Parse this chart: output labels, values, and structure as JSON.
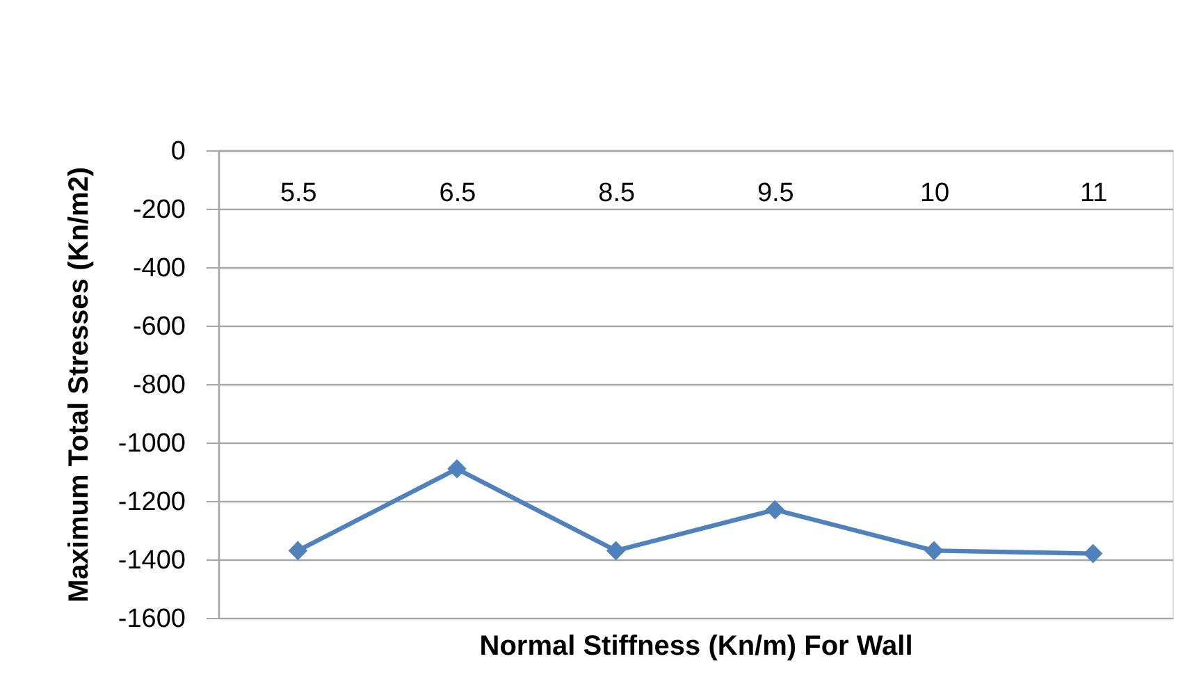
{
  "chart_data": {
    "type": "line",
    "xlabel": "Normal Stiffness (Kn/m) For Wall",
    "ylabel": "Maximum Total Stresses (Kn/m2)",
    "categories": [
      "5.5",
      "6.5",
      "8.5",
      "9.5",
      "10",
      "11"
    ],
    "series": [
      {
        "color": "#4f81bd",
        "values": [
          -1370,
          -1090,
          -1370,
          -1230,
          -1370,
          -1380
        ]
      }
    ],
    "ylim": [
      -1600,
      0
    ],
    "yticks": [
      0,
      -200,
      -400,
      -600,
      -800,
      -1000,
      -1200,
      -1400,
      -1600
    ],
    "grid": "y",
    "marker": "diamond",
    "line_style": "solid"
  }
}
